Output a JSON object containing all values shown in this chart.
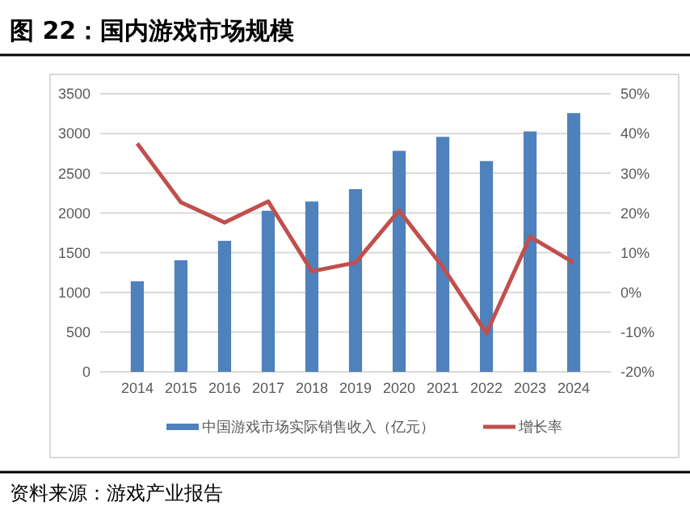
{
  "chart_data": {
    "type": "bar",
    "title": "图 22：国内游戏市场规模",
    "categories": [
      "2014",
      "2015",
      "2016",
      "2017",
      "2018",
      "2019",
      "2020",
      "2021",
      "2022",
      "2023",
      "2024"
    ],
    "series": [
      {
        "name": "中国游戏市场实际销售收入（亿元）",
        "color": "#4f81bd",
        "values": [
          1140,
          1404,
          1649,
          2028,
          2144,
          2300,
          2782,
          2958,
          2653,
          3026,
          3257
        ]
      },
      {
        "name": "增长率",
        "type": "line",
        "axis": "y2",
        "color": "#c0504d",
        "values": [
          37.5,
          22.7,
          17.6,
          22.9,
          5.3,
          7.5,
          20.6,
          6.4,
          -10.3,
          14.0,
          7.5
        ]
      }
    ],
    "ylim": [
      0,
      3500
    ],
    "yticks": [
      0,
      500,
      1000,
      1500,
      2000,
      2500,
      3000,
      3500
    ],
    "y2lim": [
      -20,
      50
    ],
    "y2ticks": [
      {
        "value": -20,
        "label": "-20%"
      },
      {
        "value": -10,
        "label": "-10%"
      },
      {
        "value": 0,
        "label": "0%"
      },
      {
        "value": 10,
        "label": "10%"
      },
      {
        "value": 20,
        "label": "20%"
      },
      {
        "value": 30,
        "label": "30%"
      },
      {
        "value": 40,
        "label": "40%"
      },
      {
        "value": 50,
        "label": "50%"
      }
    ],
    "grid": "y",
    "legend": "bottom",
    "marker": "none",
    "annotations": [
      "资料来源：游戏产业报告"
    ]
  }
}
